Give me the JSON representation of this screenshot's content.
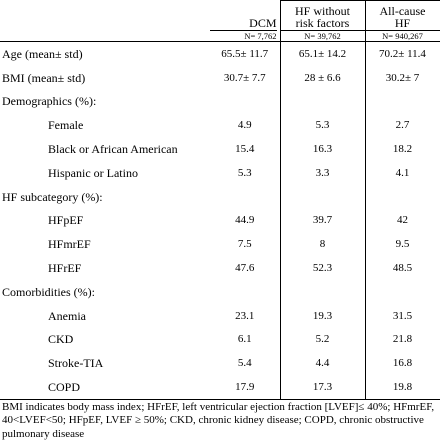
{
  "header": {
    "columns": [
      {
        "title": "DCM",
        "n": "N= 7,762"
      },
      {
        "title": "HF without risk factors",
        "n": "N= 39,762"
      },
      {
        "title": "All-cause HF",
        "n": "N= 940,267"
      }
    ]
  },
  "table": {
    "rows": [
      {
        "label": "Age (mean± std)",
        "values": [
          "65.5± 11.7",
          "65.1± 14.2",
          "70.2± 11.4"
        ]
      },
      {
        "label": "BMI (mean± std)",
        "values": [
          "30.7± 7.7",
          "28 ± 6.6",
          "30.2± 7"
        ]
      },
      {
        "heading": "Demographics (%):",
        "rows": [
          {
            "label": "Female",
            "values": [
              4.9,
              5.3,
              2.7
            ]
          },
          {
            "label": "Black or African American",
            "values": [
              15.4,
              16.3,
              18.2
            ]
          },
          {
            "label": "Hispanic or Latino",
            "values": [
              5.3,
              3.3,
              4.1
            ]
          }
        ]
      },
      {
        "heading": "HF subcategory (%):",
        "rows": [
          {
            "label": "HFpEF",
            "values": [
              44.9,
              39.7,
              42
            ]
          },
          {
            "label": "HFmrEF",
            "values": [
              7.5,
              8,
              9.5
            ]
          },
          {
            "label": "HFrEF",
            "values": [
              47.6,
              52.3,
              48.5
            ]
          }
        ]
      },
      {
        "heading": "Comorbidities (%):",
        "rows": [
          {
            "label": "Anemia",
            "values": [
              23.1,
              19.3,
              31.5
            ]
          },
          {
            "label": "CKD",
            "values": [
              6.1,
              5.2,
              21.8
            ]
          },
          {
            "label": "Stroke-TIA",
            "values": [
              5.4,
              4.4,
              16.8
            ]
          },
          {
            "label": "COPD",
            "values": [
              17.9,
              17.3,
              19.8
            ]
          }
        ]
      }
    ]
  },
  "footnote": "BMI indicates body mass index; HFrEF, left ventricular ejection fraction [LVEF]≤ 40%; HFmrEF, 40<LVEF<50; HFpEF, LVEF ≥ 50%; CKD, chronic kidney disease; COPD, chronic obstructive pulmonary disease"
}
